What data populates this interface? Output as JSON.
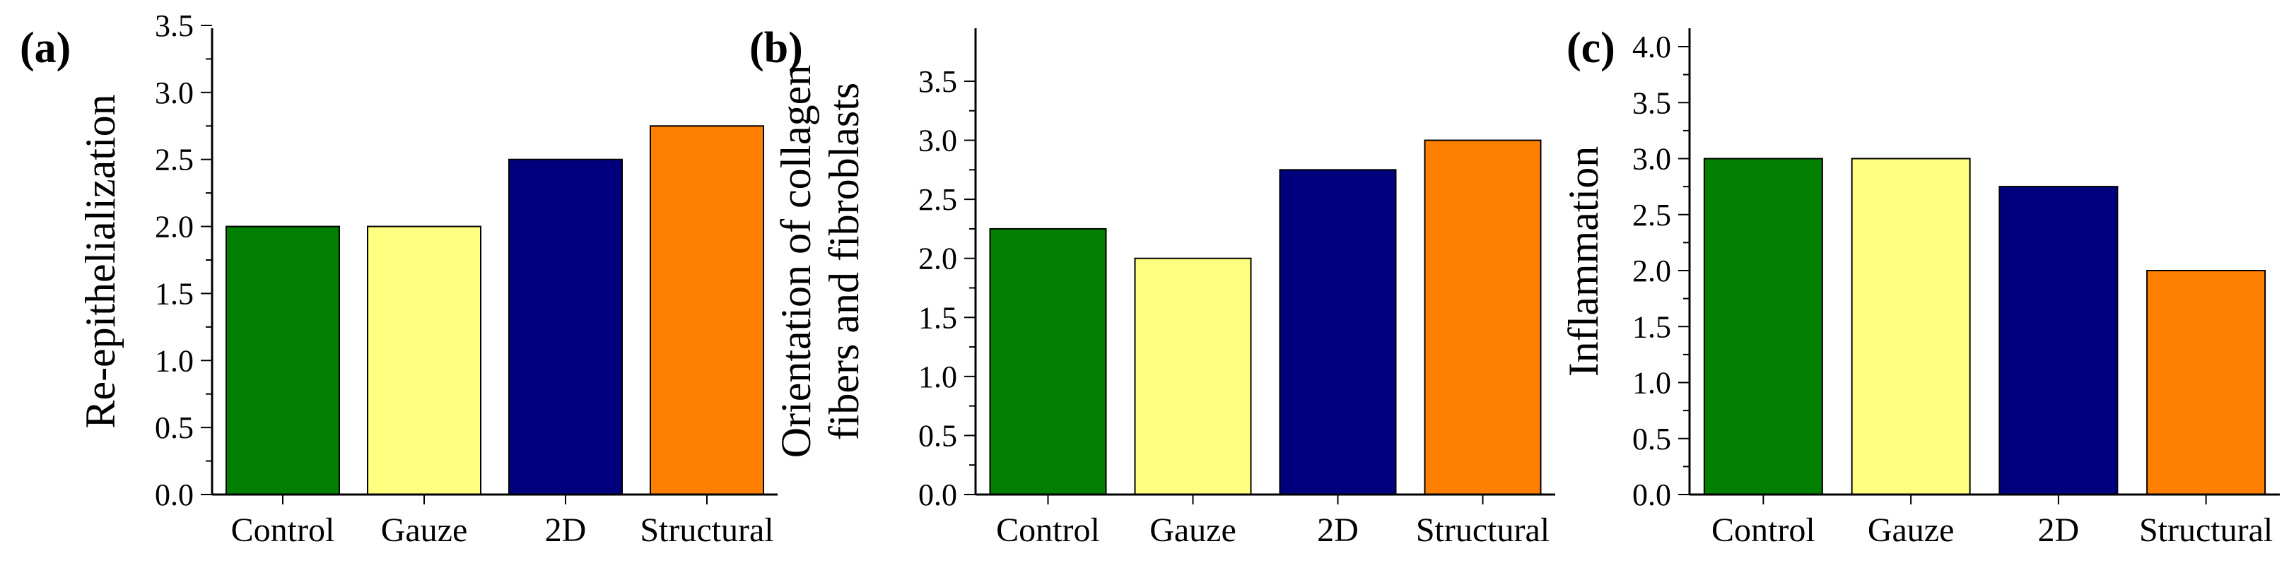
{
  "chart_data": [
    {
      "type": "bar",
      "panel": "(a)",
      "ylabel": [
        "Re-epithelialization"
      ],
      "categories": [
        "Control",
        "Gauze",
        "2D",
        "Structural"
      ],
      "values": [
        2.0,
        2.0,
        2.5,
        2.75
      ],
      "colors": [
        "#007f00",
        "#ffff80",
        "#00007f",
        "#ff7f00"
      ],
      "ylim": [
        0,
        3.5
      ],
      "yticks": [
        "0.0",
        "0.5",
        "1.0",
        "1.5",
        "2.0",
        "2.5",
        "3.0",
        "3.5"
      ],
      "grid": false,
      "legend": "none"
    },
    {
      "type": "bar",
      "panel": "(b)",
      "ylabel": [
        "Orientation of collagen",
        "fibers and fibroblasts"
      ],
      "categories": [
        "Control",
        "Gauze",
        "2D",
        "Structural"
      ],
      "values": [
        2.25,
        2.0,
        2.75,
        3.0
      ],
      "colors": [
        "#007f00",
        "#ffff80",
        "#00007f",
        "#ff7f00"
      ],
      "ylim": [
        0,
        3.5
      ],
      "yticks": [
        "0.0",
        "0.5",
        "1.0",
        "1.5",
        "2.0",
        "2.5",
        "3.0",
        "3.5"
      ],
      "grid": false,
      "legend": "none"
    },
    {
      "type": "bar",
      "panel": "(c)",
      "ylabel": [
        "Inflammation"
      ],
      "categories": [
        "Control",
        "Gauze",
        "2D",
        "Structural"
      ],
      "values": [
        3.0,
        3.0,
        2.75,
        2.0
      ],
      "colors": [
        "#007f00",
        "#ffff80",
        "#00007f",
        "#ff7f00"
      ],
      "ylim": [
        0,
        4.0
      ],
      "yticks": [
        "0.0",
        "0.5",
        "1.0",
        "1.5",
        "2.0",
        "2.5",
        "3.0",
        "3.5",
        "4.0"
      ],
      "grid": false,
      "legend": "none"
    }
  ]
}
